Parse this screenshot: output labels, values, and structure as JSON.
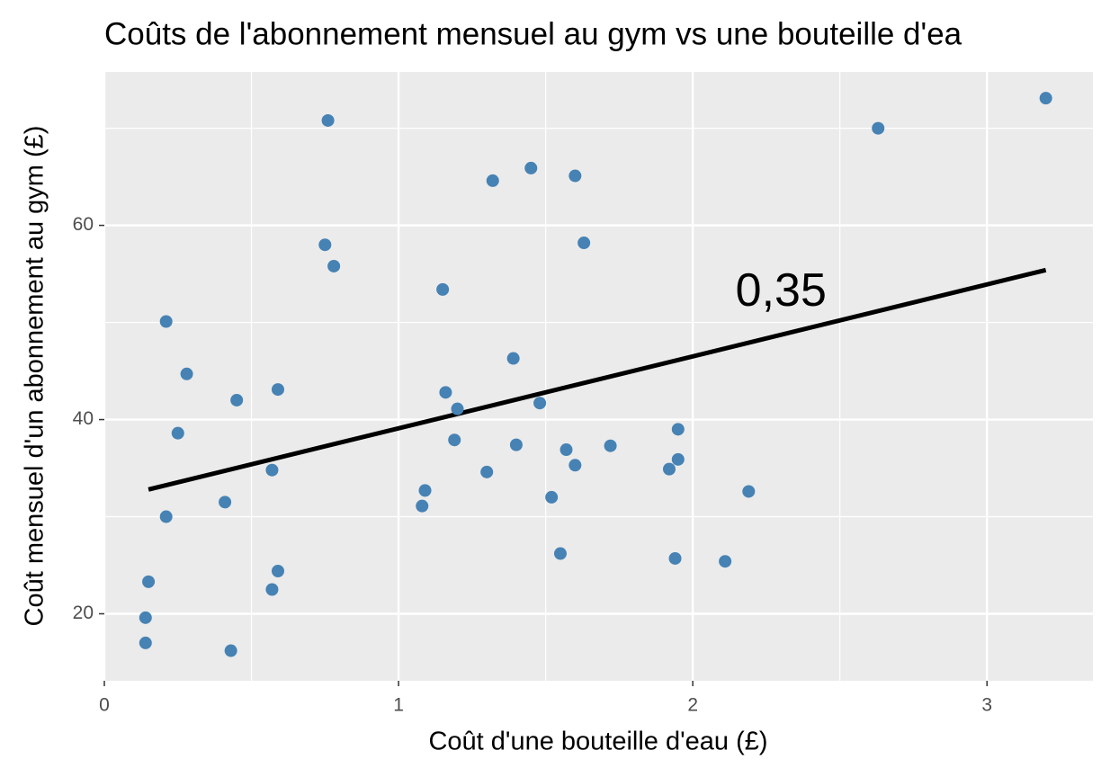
{
  "chart_data": {
    "type": "scatter",
    "title": "Coûts de l'abonnement mensuel au gym vs une bouteille d'ea",
    "x_label": "Coût d'une bouteille d'eau (£)",
    "y_label": "Coût mensuel d'un abonnement au gym (£)",
    "xlim": [
      0,
      3.36
    ],
    "ylim": [
      13.1,
      75.8
    ],
    "xticks": [
      0,
      1,
      2,
      3
    ],
    "yticks": [
      20,
      40,
      60
    ],
    "minor_xticks": [
      0.5,
      1.5,
      2.5
    ],
    "minor_yticks": [
      30,
      50,
      70
    ],
    "grid": true,
    "series": [
      {
        "color": "#4682b4",
        "x": [
          3.2,
          2.63,
          0.76,
          1.45,
          1.32,
          1.6,
          1.63,
          0.75,
          0.78,
          1.15,
          0.21,
          0.28,
          1.39,
          0.45,
          0.59,
          1.16,
          1.2,
          1.48,
          0.25,
          1.95,
          1.19,
          1.4,
          1.72,
          1.57,
          1.6,
          1.95,
          1.92,
          0.57,
          1.3,
          1.09,
          1.52,
          2.19,
          1.08,
          0.41,
          0.21,
          1.55,
          1.94,
          2.11,
          0.59,
          0.57,
          0.15,
          0.14,
          0.14,
          0.43
        ],
        "values": [
          73.1,
          70.0,
          70.8,
          65.9,
          64.6,
          65.1,
          58.2,
          58.0,
          55.8,
          53.4,
          50.1,
          44.7,
          46.3,
          42.0,
          43.1,
          42.8,
          41.1,
          41.7,
          38.6,
          39.0,
          37.9,
          37.4,
          37.3,
          36.9,
          35.3,
          35.9,
          34.9,
          34.8,
          34.6,
          32.7,
          32.0,
          32.6,
          31.1,
          31.5,
          30.0,
          26.2,
          25.7,
          25.4,
          24.4,
          22.5,
          23.3,
          19.6,
          17.0,
          16.2
        ]
      }
    ],
    "trend_line": {
      "color": "#000000",
      "x": [
        0.15,
        3.2
      ],
      "values": [
        32.8,
        55.4
      ]
    },
    "annotation": {
      "text": "0,35",
      "x": 2.3,
      "y": 53
    }
  }
}
